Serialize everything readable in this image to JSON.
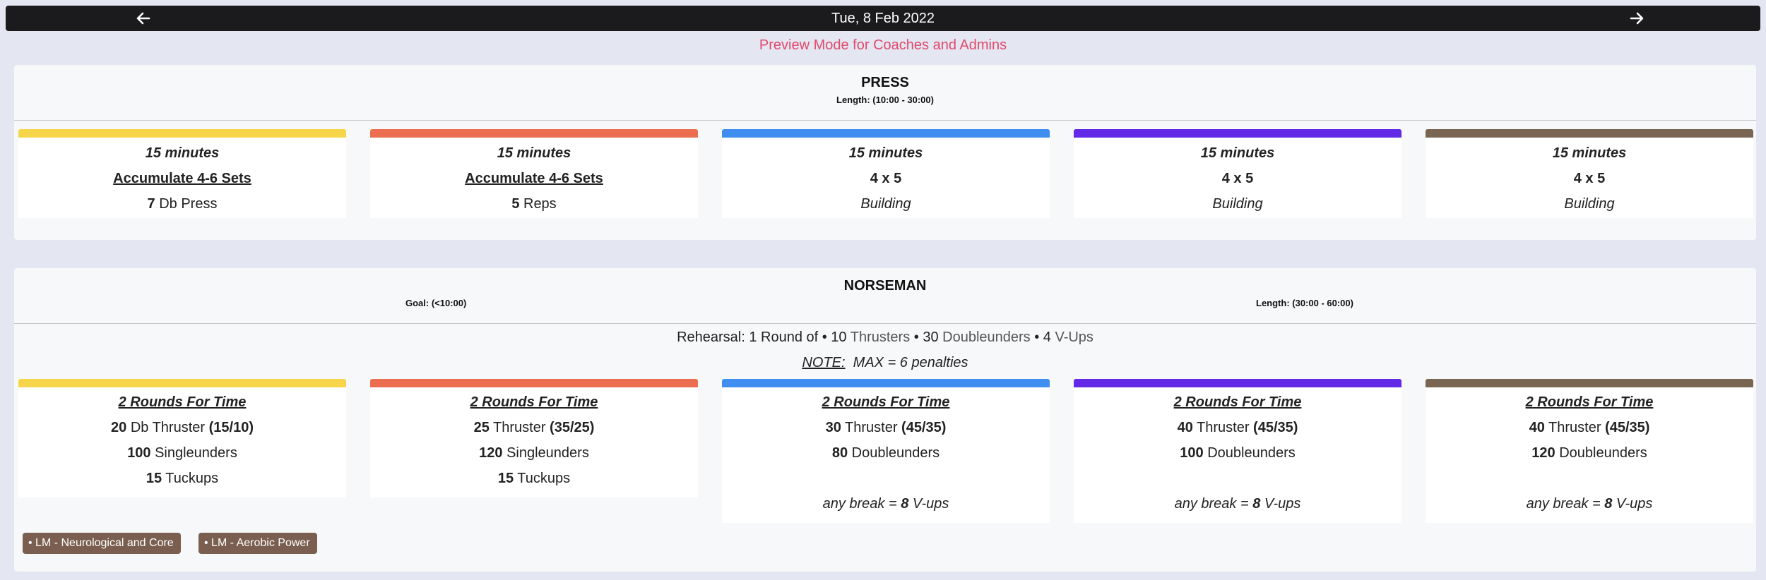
{
  "nav": {
    "date": "Tue, 8 Feb 2022",
    "prev_icon": "arrow-left-icon",
    "next_icon": "arrow-right-icon"
  },
  "preview_note": "Preview Mode for Coaches and Admins",
  "colors": {
    "yellow": "#f7d54a",
    "orange": "#ea6e4f",
    "blue": "#3f8ef0",
    "purple": "#6229e6",
    "brown": "#7a6552",
    "preview": "#e04a6c",
    "tag": "#7a5f50"
  },
  "press": {
    "title": "PRESS",
    "length": "Length: (10:00 - 30:00)",
    "cards": [
      {
        "time": "15 minutes",
        "scheme": "Accumulate 4-6 Sets",
        "num": "7",
        "move": " Db Press"
      },
      {
        "time": "15 minutes",
        "scheme": "Accumulate 4-6 Sets",
        "num": "5",
        "move": " Reps"
      },
      {
        "time": "15 minutes",
        "scheme": "4 x 5",
        "note": "Building"
      },
      {
        "time": "15 minutes",
        "scheme": "4 x 5",
        "note": "Building"
      },
      {
        "time": "15 minutes",
        "scheme": "4 x 5",
        "note": "Building"
      }
    ]
  },
  "norseman": {
    "title": "NORSEMAN",
    "goal": "Goal: (<10:00)",
    "length": "Length: (30:00 - 60:00)",
    "rehearsal": {
      "prefix": "Rehearsal: 1 Round of • 10 ",
      "m1": "Thrusters",
      "mid1": " • 30 ",
      "m2": "Doubleunders",
      "mid2": " • 4 ",
      "m3": "V-Ups"
    },
    "note_label": "NOTE:",
    "note_text": "  MAX = 6 penalties",
    "cards": [
      {
        "header": "2 Rounds For Time",
        "l1n": "20",
        "l1m": " Db Thruster ",
        "l1w": "(15/10)",
        "l2n": "100",
        "l2m": " Singleunders",
        "l3n": "15",
        "l3m": " Tuckups"
      },
      {
        "header": "2 Rounds For Time",
        "l1n": "25",
        "l1m": " Thruster ",
        "l1w": "(35/25)",
        "l2n": "120",
        "l2m": " Singleunders",
        "l3n": "15",
        "l3m": " Tuckups"
      },
      {
        "header": "2 Rounds For Time",
        "l1n": "30",
        "l1m": " Thruster ",
        "l1w": "(45/35)",
        "l2n": "80",
        "l2m": " Doubleunders",
        "bp": "any break = ",
        "bn": "8",
        "bs": " V-ups"
      },
      {
        "header": "2 Rounds For Time",
        "l1n": "40",
        "l1m": " Thruster ",
        "l1w": "(45/35)",
        "l2n": "100",
        "l2m": " Doubleunders",
        "bp": "any break = ",
        "bn": "8",
        "bs": " V-ups"
      },
      {
        "header": "2 Rounds For Time",
        "l1n": "40",
        "l1m": " Thruster ",
        "l1w": "(45/35)",
        "l2n": "120",
        "l2m": " Doubleunders",
        "bp": "any break = ",
        "bn": "8",
        "bs": " V-ups"
      }
    ],
    "tags": [
      "• LM - Neurological and Core",
      "• LM - Aerobic Power"
    ]
  }
}
